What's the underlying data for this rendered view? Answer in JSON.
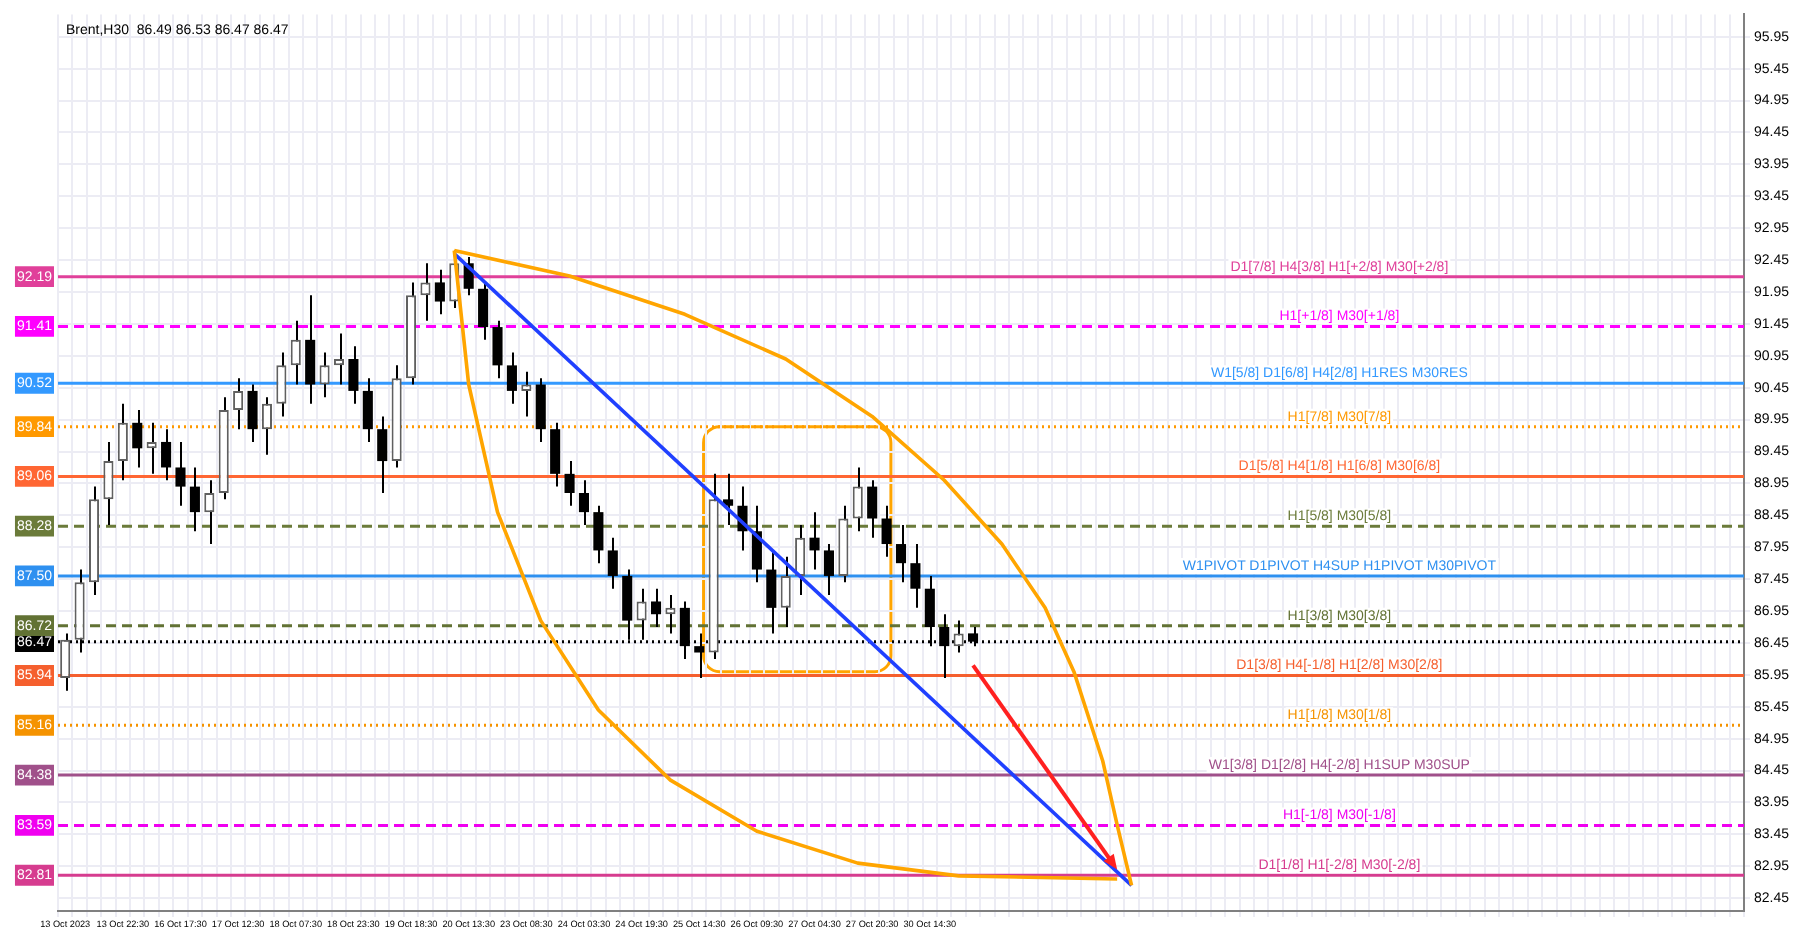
{
  "chart_data": {
    "type": "candlestick",
    "title": "Brent,H30  86.49 86.53 86.47 86.47",
    "categories": [
      "13 Oct 2023",
      null,
      null,
      null,
      "13 Oct 22:30",
      null,
      null,
      null,
      "16 Oct 17:30",
      null,
      null,
      null,
      "17 Oct 12:30",
      null,
      null,
      null,
      "18 Oct 07:30",
      null,
      null,
      null,
      "18 Oct 23:30",
      null,
      null,
      null,
      "19 Oct 18:30",
      null,
      null,
      null,
      "20 Oct 13:30",
      null,
      null,
      null,
      "23 Oct 08:30",
      null,
      null,
      null,
      "24 Oct 03:30",
      null,
      null,
      null,
      "24 Oct 19:30",
      null,
      null,
      null,
      "25 Oct 14:30",
      null,
      null,
      null,
      "26 Oct 09:30",
      null,
      null,
      null,
      "27 Oct 04:30",
      null,
      null,
      null,
      "27 Oct 20:30",
      null,
      null,
      null,
      "30 Oct 14:30",
      null,
      null,
      null,
      null,
      null,
      null,
      null,
      null,
      null,
      null,
      null,
      null,
      null,
      null,
      null,
      null,
      null,
      null,
      null,
      null,
      null,
      null,
      null,
      null,
      null,
      null,
      null,
      null,
      null,
      null,
      null,
      null,
      null,
      null,
      null,
      null,
      null,
      null,
      null,
      null,
      null,
      null,
      null,
      null,
      null,
      null,
      null,
      null,
      null,
      null,
      null,
      null,
      null,
      null,
      null,
      null
    ],
    "ohlc": [
      [
        85.9,
        86.6,
        85.7,
        86.5
      ],
      [
        86.5,
        87.6,
        86.3,
        87.4
      ],
      [
        87.4,
        88.9,
        87.2,
        88.7
      ],
      [
        88.7,
        89.6,
        88.3,
        89.3
      ],
      [
        89.3,
        90.2,
        89.0,
        89.9
      ],
      [
        89.9,
        90.1,
        89.2,
        89.5
      ],
      [
        89.5,
        89.9,
        89.1,
        89.6
      ],
      [
        89.6,
        89.8,
        89.0,
        89.2
      ],
      [
        89.2,
        89.6,
        88.6,
        88.9
      ],
      [
        88.9,
        89.2,
        88.2,
        88.5
      ],
      [
        88.5,
        89.0,
        88.0,
        88.8
      ],
      [
        88.8,
        90.3,
        88.7,
        90.1
      ],
      [
        90.1,
        90.6,
        89.8,
        90.4
      ],
      [
        90.4,
        90.5,
        89.6,
        89.8
      ],
      [
        89.8,
        90.3,
        89.4,
        90.2
      ],
      [
        90.2,
        91.0,
        90.0,
        90.8
      ],
      [
        90.8,
        91.5,
        90.5,
        91.2
      ],
      [
        91.2,
        91.9,
        90.2,
        90.5
      ],
      [
        90.5,
        91.0,
        90.3,
        90.8
      ],
      [
        90.8,
        91.3,
        90.5,
        90.9
      ],
      [
        90.9,
        91.1,
        90.2,
        90.4
      ],
      [
        90.4,
        90.6,
        89.6,
        89.8
      ],
      [
        89.8,
        90.0,
        88.8,
        89.3
      ],
      [
        89.3,
        90.8,
        89.2,
        90.6
      ],
      [
        90.6,
        92.1,
        90.5,
        91.9
      ],
      [
        91.9,
        92.4,
        91.5,
        92.1
      ],
      [
        92.1,
        92.3,
        91.6,
        91.8
      ],
      [
        91.8,
        92.6,
        91.7,
        92.4
      ],
      [
        92.4,
        92.5,
        91.9,
        92.0
      ],
      [
        92.0,
        92.1,
        91.2,
        91.4
      ],
      [
        91.4,
        91.5,
        90.6,
        90.8
      ],
      [
        90.8,
        91.0,
        90.2,
        90.4
      ],
      [
        90.4,
        90.7,
        90.0,
        90.5
      ],
      [
        90.5,
        90.6,
        89.6,
        89.8
      ],
      [
        89.8,
        89.9,
        88.9,
        89.1
      ],
      [
        89.1,
        89.3,
        88.6,
        88.8
      ],
      [
        88.8,
        89.0,
        88.3,
        88.5
      ],
      [
        88.5,
        88.6,
        87.7,
        87.9
      ],
      [
        87.9,
        88.1,
        87.3,
        87.5
      ],
      [
        87.5,
        87.6,
        86.5,
        86.8
      ],
      [
        86.8,
        87.3,
        86.5,
        87.1
      ],
      [
        87.1,
        87.3,
        86.7,
        86.9
      ],
      [
        86.9,
        87.2,
        86.6,
        87.0
      ],
      [
        87.0,
        87.1,
        86.2,
        86.4
      ],
      [
        86.4,
        86.6,
        85.9,
        86.3
      ],
      [
        86.3,
        89.1,
        86.2,
        88.7
      ],
      [
        88.7,
        89.1,
        88.3,
        88.6
      ],
      [
        88.6,
        88.9,
        87.9,
        88.2
      ],
      [
        88.2,
        88.6,
        87.4,
        87.6
      ],
      [
        87.6,
        87.9,
        86.6,
        87.0
      ],
      [
        87.0,
        87.8,
        86.7,
        87.5
      ],
      [
        87.5,
        88.3,
        87.2,
        88.1
      ],
      [
        88.1,
        88.5,
        87.6,
        87.9
      ],
      [
        87.9,
        88.0,
        87.2,
        87.5
      ],
      [
        87.5,
        88.6,
        87.4,
        88.4
      ],
      [
        88.4,
        89.2,
        88.2,
        88.9
      ],
      [
        88.9,
        89.0,
        88.1,
        88.4
      ],
      [
        88.4,
        88.6,
        87.8,
        88.0
      ],
      [
        88.0,
        88.3,
        87.4,
        87.7
      ],
      [
        87.7,
        88.0,
        87.0,
        87.3
      ],
      [
        87.3,
        87.5,
        86.4,
        86.7
      ],
      [
        86.7,
        86.9,
        85.9,
        86.4
      ],
      [
        86.4,
        86.8,
        86.3,
        86.6
      ],
      [
        86.6,
        86.7,
        86.4,
        86.47
      ],
      null,
      null,
      null,
      null,
      null,
      null,
      null,
      null,
      null,
      null,
      null,
      null,
      null,
      null,
      null,
      null,
      null,
      null,
      null,
      null,
      null,
      null,
      null,
      null,
      null,
      null,
      null,
      null,
      null,
      null,
      null,
      null,
      null,
      null,
      null,
      null,
      null,
      null,
      null,
      null,
      null,
      null,
      null,
      null,
      null,
      null,
      null,
      null,
      null,
      null,
      null,
      null,
      null
    ],
    "series": [
      {
        "type": "line",
        "color": "#ffa500",
        "values": [
          null,
          null,
          null,
          null,
          null,
          null,
          null,
          null,
          null,
          null,
          null,
          null,
          null,
          null,
          null,
          null,
          null,
          null,
          null,
          null,
          null,
          null,
          null,
          null,
          null,
          null,
          null,
          92.6,
          null,
          null,
          null,
          null,
          null,
          null,
          null,
          92.2,
          null,
          null,
          null,
          null,
          null,
          null,
          null,
          91.6,
          null,
          null,
          null,
          null,
          null,
          null,
          90.9,
          null,
          null,
          null,
          null,
          null,
          90.0,
          null,
          null,
          null,
          null,
          89.0,
          null,
          null,
          null,
          88.0,
          null,
          null,
          87.0,
          null,
          86.0,
          null,
          84.6,
          83.6,
          82.65,
          null,
          null,
          null,
          null,
          null,
          null,
          null,
          null,
          null,
          null,
          null,
          null,
          null,
          null,
          null,
          null,
          null,
          null,
          null,
          null,
          null,
          null,
          null,
          null,
          null,
          null,
          null,
          null,
          null,
          null,
          null,
          null,
          null,
          null,
          null,
          null,
          null,
          null,
          null,
          null,
          null,
          null
        ]
      },
      {
        "type": "line",
        "color": "#ffa500",
        "values": [
          null,
          null,
          null,
          null,
          null,
          null,
          null,
          null,
          null,
          null,
          null,
          null,
          null,
          null,
          null,
          null,
          null,
          null,
          null,
          null,
          null,
          null,
          null,
          null,
          null,
          null,
          null,
          92.6,
          90.5,
          null,
          88.5,
          null,
          null,
          86.8,
          null,
          null,
          null,
          85.4,
          null,
          null,
          null,
          null,
          84.3,
          null,
          null,
          null,
          null,
          null,
          83.5,
          null,
          null,
          null,
          null,
          null,
          null,
          83.0,
          null,
          null,
          null,
          null,
          null,
          null,
          82.8,
          null,
          null,
          null,
          null,
          null,
          null,
          null,
          null,
          null,
          null,
          82.75,
          null,
          null,
          null,
          null,
          null,
          null,
          null,
          null,
          null,
          null,
          null,
          null,
          null,
          null,
          null,
          null,
          null,
          null,
          null,
          null,
          null,
          null,
          null,
          null,
          null,
          null,
          null,
          null,
          null,
          null,
          null,
          null,
          null,
          null,
          null,
          null,
          null,
          null,
          null,
          null,
          null,
          null,
          null
        ]
      },
      {
        "type": "line",
        "color": "#2040ff",
        "values": [
          null,
          null,
          null,
          null,
          null,
          null,
          null,
          null,
          null,
          null,
          null,
          null,
          null,
          null,
          null,
          null,
          null,
          null,
          null,
          null,
          null,
          null,
          null,
          null,
          null,
          null,
          null,
          92.55,
          null,
          null,
          null,
          null,
          null,
          null,
          null,
          null,
          null,
          null,
          null,
          null,
          null,
          null,
          null,
          null,
          null,
          null,
          null,
          null,
          null,
          null,
          null,
          null,
          null,
          null,
          null,
          null,
          null,
          null,
          null,
          null,
          null,
          null,
          null,
          null,
          null,
          null,
          null,
          null,
          null,
          null,
          null,
          null,
          null,
          null,
          82.65,
          null,
          null,
          null,
          null,
          null,
          null,
          null,
          null,
          null,
          null,
          null,
          null,
          null,
          null,
          null,
          null,
          null,
          null,
          null,
          null,
          null,
          null,
          null,
          null,
          null,
          null,
          null,
          null,
          null,
          null,
          null,
          null,
          null,
          null,
          null,
          null,
          null,
          null,
          null,
          null,
          null,
          null
        ]
      }
    ],
    "ylim": [
      82.25,
      96.3
    ],
    "yticks": [
      82.45,
      82.95,
      83.45,
      83.95,
      84.45,
      84.95,
      85.45,
      85.95,
      86.45,
      86.95,
      87.45,
      87.95,
      88.45,
      88.95,
      89.45,
      89.95,
      90.45,
      90.95,
      91.45,
      91.95,
      92.45,
      92.95,
      93.45,
      93.95,
      94.45,
      94.95,
      95.45,
      95.95
    ],
    "ref_lines": [
      {
        "axis": "y",
        "value": 92.19,
        "label": "D1[7/8] H4[3/8] H1[+2/8] M30[+2/8]",
        "color": "#e0409a",
        "line_style": "solid"
      },
      {
        "axis": "y",
        "value": 91.41,
        "label": "H1[+1/8] M30[+1/8]",
        "color": "#ff00ff",
        "line_style": "dashed"
      },
      {
        "axis": "y",
        "value": 90.52,
        "label": "W1[5/8] D1[6/8] H4[2/8] H1RES M30RES",
        "color": "#3399ff",
        "line_style": "solid"
      },
      {
        "axis": "y",
        "value": 89.84,
        "label": "H1[7/8] M30[7/8]",
        "color": "#ff9900",
        "line_style": "dotted"
      },
      {
        "axis": "y",
        "value": 89.06,
        "label": "D1[5/8] H4[1/8] H1[6/8] M30[6/8]",
        "color": "#ff6633",
        "line_style": "solid"
      },
      {
        "axis": "y",
        "value": 88.28,
        "label": "H1[5/8] M30[5/8]",
        "color": "#6b7b3a",
        "line_style": "dashed"
      },
      {
        "axis": "y",
        "value": 87.5,
        "label": "W1PIVOT D1PIVOT H4SUP H1PIVOT M30PIVOT",
        "color": "#2e90f0",
        "line_style": "solid"
      },
      {
        "axis": "y",
        "value": 86.72,
        "label": "H1[3/8] M30[3/8]",
        "color": "#627234",
        "line_style": "dashed"
      },
      {
        "axis": "y",
        "value": 86.47,
        "label": null,
        "color": "#000000",
        "line_style": "dotted"
      },
      {
        "axis": "y",
        "value": 85.94,
        "label": "D1[3/8] H4[-1/8] H1[2/8] M30[2/8]",
        "color": "#f55f2e",
        "line_style": "solid"
      },
      {
        "axis": "y",
        "value": 85.16,
        "label": "H1[1/8] M30[1/8]",
        "color": "#f59300",
        "line_style": "dotted"
      },
      {
        "axis": "y",
        "value": 84.38,
        "label": "W1[3/8] D1[2/8] H4[-2/8] H1SUP M30SUP",
        "color": "#a0508a",
        "line_style": "solid"
      },
      {
        "axis": "y",
        "value": 83.59,
        "label": "H1[-1/8] M30[-1/8]",
        "color": "#f000f0",
        "line_style": "dashed"
      },
      {
        "axis": "y",
        "value": 82.81,
        "label": "D1[1/8] H1[-2/8] M30[-2/8]",
        "color": "#d63c8f",
        "line_style": "solid"
      }
    ],
    "y2lim": [
      82.25,
      96.3
    ],
    "y2ticks": [
      82.81,
      83.59,
      84.38,
      85.16,
      85.94,
      86.47,
      86.72,
      {
        "value": 87.5,
        "label": "87.50"
      },
      88.28,
      89.06,
      89.84,
      90.52,
      91.41,
      92.19
    ],
    "grid": true,
    "legend": false
  }
}
